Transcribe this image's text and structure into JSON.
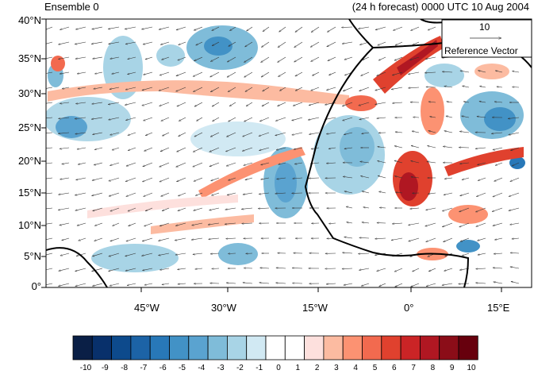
{
  "header": {
    "left_title": "Ensemble 0",
    "right_title": "(24 h forecast) 0000 UTC 10 Aug 2004"
  },
  "lat_labels": [
    "40°N",
    "35°N",
    "30°N",
    "25°N",
    "20°N",
    "15°N",
    "10°N",
    "5°N",
    "0°"
  ],
  "lon_labels": [
    "45°W",
    "30°W",
    "15°W",
    "0°",
    "15°E"
  ],
  "reference_vector": {
    "magnitude": "10",
    "label": "Reference Vector"
  },
  "colorbar": {
    "labels": [
      "-10",
      "-9",
      "-8",
      "-7",
      "-6",
      "-5",
      "-4",
      "-3",
      "-2",
      "-1",
      "0",
      "1",
      "2",
      "3",
      "4",
      "5",
      "6",
      "7",
      "8",
      "9",
      "10"
    ],
    "colors": [
      "#0a1f46",
      "#08306b",
      "#0d4a8c",
      "#1c63a6",
      "#2878b8",
      "#4292c6",
      "#5aa3d0",
      "#7fbcd9",
      "#a8d4e6",
      "#d1e9f3",
      "#ffffff",
      "#ffffff",
      "#fde0dd",
      "#fcbba1",
      "#fc9272",
      "#f26a4f",
      "#e0412e",
      "#cb2426",
      "#b01722",
      "#8b0d18",
      "#67000d"
    ]
  },
  "chart_data": {
    "type": "heatmap",
    "title": "Ensemble 0",
    "subtitle": "(24 h forecast) 0000 UTC 10 Aug 2004",
    "lon_range": [
      -58,
      20
    ],
    "lat_range": [
      0,
      40
    ],
    "xticks": [
      "45°W",
      "30°W",
      "15°W",
      "0°",
      "15°E"
    ],
    "yticks": [
      "40°N",
      "35°N",
      "30°N",
      "25°N",
      "20°N",
      "15°N",
      "10°N",
      "5°N",
      "0°"
    ],
    "color_range": [
      -10,
      10
    ],
    "overlay": "wind vectors",
    "reference_vector": 10
  }
}
